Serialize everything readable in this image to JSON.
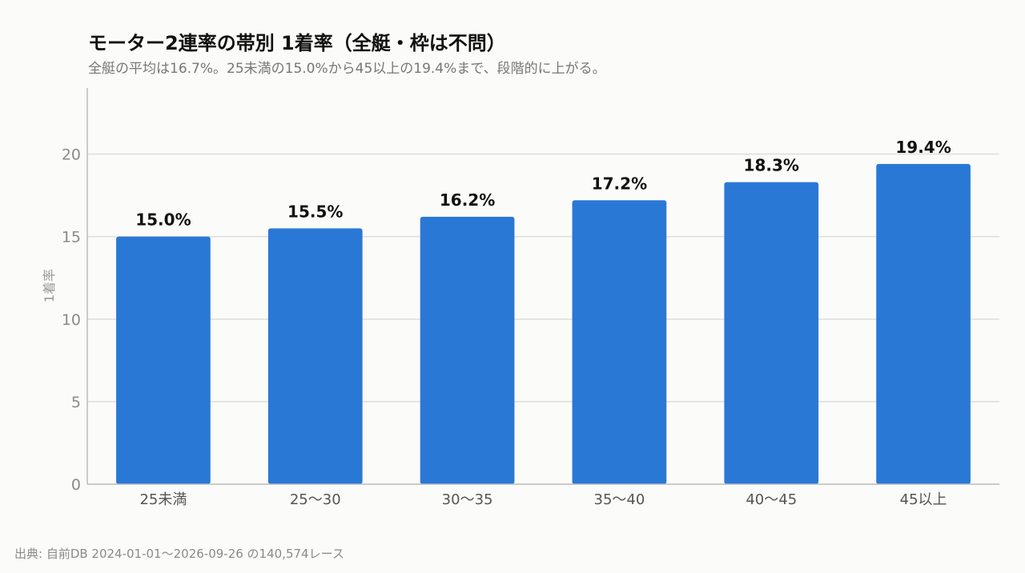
{
  "colors": {
    "bar": "#2a78d6",
    "gridline": "#dddddd",
    "axis": "#bbbbbb",
    "background": "#fbfbf9"
  },
  "source_note": "出典: 自前DB 2024-01-01〜2026-09-26 の140,574レース",
  "chart_data": {
    "type": "bar",
    "title": "モーター2連率の帯別 1着率（全艇・枠は不問）",
    "subtitle": "全艇の平均は16.7%。25未満の15.0%から45以上の19.4%まで、段階的に上がる。",
    "xlabel": "",
    "ylabel": "1着率",
    "categories": [
      "25未満",
      "25〜30",
      "30〜35",
      "35〜40",
      "40〜45",
      "45以上"
    ],
    "values": [
      15.0,
      15.5,
      16.2,
      17.2,
      18.3,
      19.4
    ],
    "data_labels": [
      "15.0%",
      "15.5%",
      "16.2%",
      "17.2%",
      "18.3%",
      "19.4%"
    ],
    "ylim": [
      0,
      24
    ],
    "yticks": [
      0,
      5,
      10,
      15,
      20
    ],
    "grid": true,
    "legend": "none"
  }
}
